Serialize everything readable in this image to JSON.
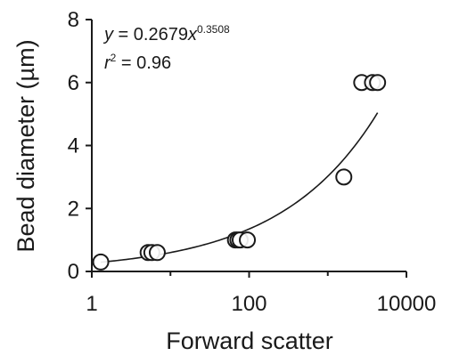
{
  "chart_data": {
    "type": "scatter",
    "xlabel": "Forward scatter",
    "ylabel": "Bead diameter (µm)",
    "x_scale": "log",
    "xlim": [
      1,
      10000
    ],
    "ylim": [
      0,
      8
    ],
    "x_ticks": [
      1,
      100,
      10000
    ],
    "x_tick_labels": [
      "1",
      "100",
      "10000"
    ],
    "y_ticks": [
      0,
      2,
      4,
      6,
      8
    ],
    "y_tick_labels": [
      "0",
      "2",
      "4",
      "6",
      "8"
    ],
    "grid": false,
    "colors": {
      "axis": "#1a1a1a",
      "marker_stroke": "#1a1a1a",
      "marker_fill": "#ffffff",
      "fit_line": "#1a1a1a"
    },
    "points": [
      {
        "x": 1.3,
        "y": 0.3
      },
      {
        "x": 5.2,
        "y": 0.6
      },
      {
        "x": 5.8,
        "y": 0.6
      },
      {
        "x": 6.8,
        "y": 0.6
      },
      {
        "x": 67,
        "y": 1.0
      },
      {
        "x": 72,
        "y": 1.0
      },
      {
        "x": 77,
        "y": 1.0
      },
      {
        "x": 95,
        "y": 1.0
      },
      {
        "x": 1600,
        "y": 3.0
      },
      {
        "x": 2700,
        "y": 6.0
      },
      {
        "x": 3700,
        "y": 6.0
      },
      {
        "x": 4300,
        "y": 6.0
      }
    ],
    "fit": {
      "equation_y": "y",
      "equation_mid": " = 0.2679",
      "equation_x": "x",
      "equation_exp": "0.3508",
      "r2_r": "r",
      "r2_sup": "2",
      "r2_rest": " = 0.96",
      "a": 0.2679,
      "b": 0.3508,
      "x_range": [
        1.3,
        4300
      ]
    }
  }
}
